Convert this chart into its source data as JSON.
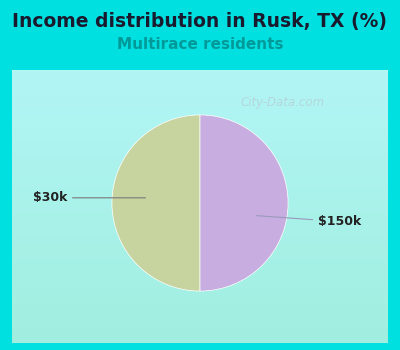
{
  "title": "Income distribution in Rusk, TX (%)",
  "subtitle": "Multirace residents",
  "title_fontsize": 13.5,
  "subtitle_fontsize": 11,
  "title_color": "#1a1a2e",
  "subtitle_color": "#009999",
  "background_color": "#00e0e0",
  "chart_bg_top": "#ffffff",
  "chart_bg_bottom": "#d0ead0",
  "slices": [
    50.0,
    50.0
  ],
  "labels": [
    "$30k",
    "$150k"
  ],
  "colors": [
    "#c8d4a0",
    "#c8aee0"
  ],
  "startangle": 90,
  "watermark": "City-Data.com"
}
